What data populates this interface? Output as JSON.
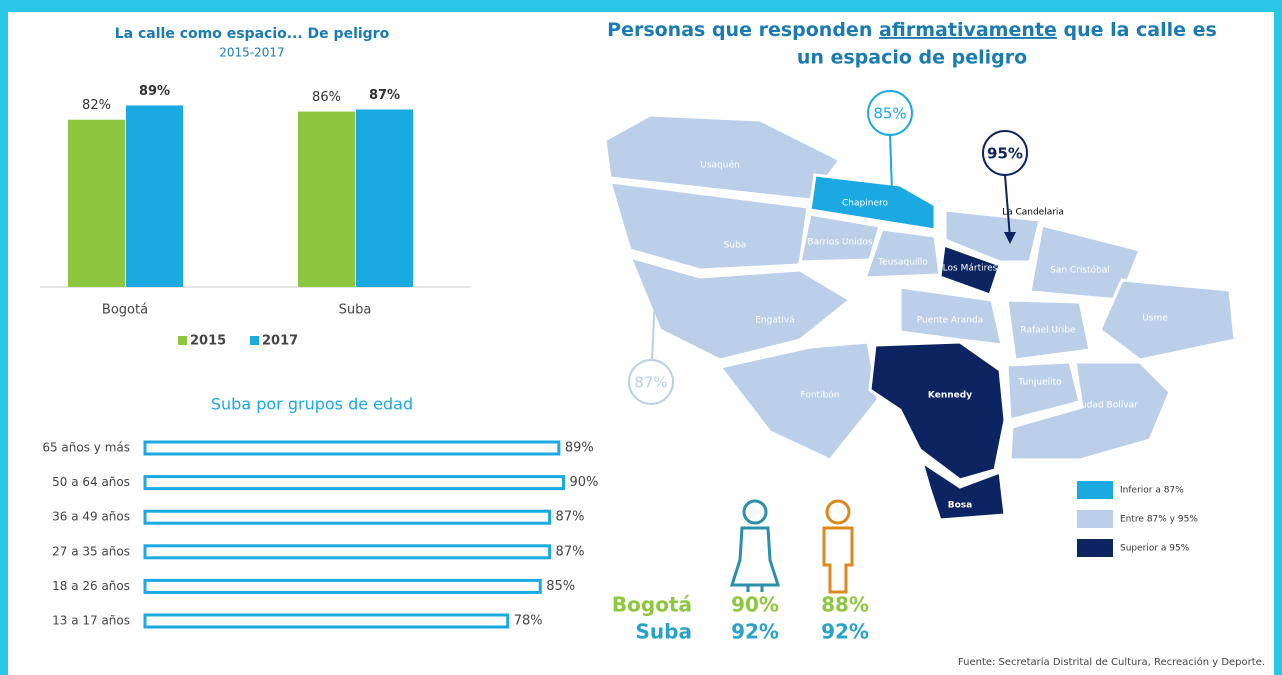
{
  "chart_data": [
    {
      "type": "bar",
      "title": "La calle como espacio... De peligro",
      "subtitle": "2015-2017",
      "categories": [
        "Bogotá",
        "Suba"
      ],
      "series": [
        {
          "name": "2015",
          "color": "#8dc63f",
          "values": [
            82,
            86
          ],
          "value_labels": [
            "82%",
            "86%"
          ]
        },
        {
          "name": "2017",
          "color": "#1ba9e1",
          "values": [
            89,
            87
          ],
          "value_labels": [
            "89%",
            "87%"
          ]
        }
      ]
    },
    {
      "type": "hbar",
      "title": "Suba por grupos de edad",
      "color": "#1ba9e1",
      "categories": [
        "65 años y más",
        "50 a 64 años",
        "36 a 49 años",
        "27 a 35 años",
        "18 a 26 años",
        "13 a 17 años"
      ],
      "values": [
        89,
        90,
        87,
        87,
        85,
        78
      ],
      "value_labels": [
        "89%",
        "90%",
        "87%",
        "87%",
        "85%",
        "78%"
      ]
    }
  ],
  "map": {
    "title": [
      "Personas que responden",
      "afirmativamente",
      "que la calle es",
      "un espacio de peligro"
    ],
    "districts": [
      "Usaquén",
      "Suba",
      "Chapinero",
      "Barrios Unidos",
      "Teusaquillo",
      "Los Mártires",
      "La Candelaria",
      "San Cristóbal",
      "Usme",
      "Engativá",
      "Puente Aranda",
      "Rafael Uribe",
      "Fontibón",
      "Kennedy",
      "Bosa",
      "Tunjuelito",
      "Ciudad Bolívar"
    ],
    "callouts": [
      "85%",
      "95%",
      "87%"
    ],
    "legend": [
      {
        "label": "Inferior a 87%",
        "color": "#1ba9e1"
      },
      {
        "label": "Entre 87% y 95%",
        "color": "#bccfe8"
      },
      {
        "label": "Superior a 95%",
        "color": "#0c2461"
      }
    ]
  },
  "gender": {
    "rows": [
      {
        "name": "Bogotá",
        "values": [
          90,
          88
        ],
        "value_labels": [
          "90%",
          "88%"
        ]
      },
      {
        "name": "Suba",
        "values": [
          92,
          92
        ],
        "value_labels": [
          "92%",
          "92%"
        ]
      }
    ]
  },
  "source": "Fuente: Secretaría Distrital de Cultura, Recreación y Deporte."
}
